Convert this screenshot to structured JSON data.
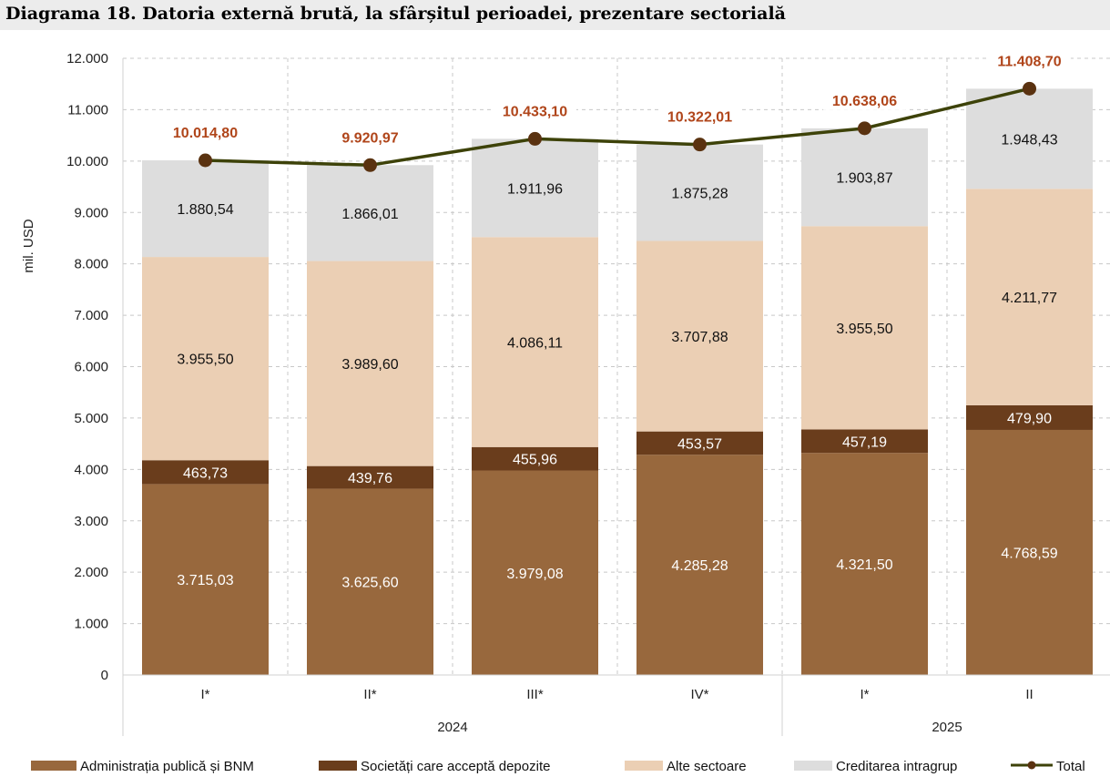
{
  "title": "Diagrama 18. Datoria externă brută, la sfârșitul perioadei, prezentare sectorială",
  "chart_data": {
    "type": "bar",
    "stacked": true,
    "ylabel": "mil. USD",
    "ylim": [
      0,
      12000
    ],
    "ytick_step": 1000,
    "yticks": [
      "0",
      "1.000",
      "2.000",
      "3.000",
      "4.000",
      "5.000",
      "6.000",
      "7.000",
      "8.000",
      "9.000",
      "10.000",
      "11.000",
      "12.000"
    ],
    "grid": true,
    "legend_position": "bottom",
    "categories": [
      "I*",
      "II*",
      "III*",
      "IV*",
      "I*",
      "II"
    ],
    "year_groups": [
      {
        "label": "2024",
        "start": 0,
        "end": 3
      },
      {
        "label": "2025",
        "start": 4,
        "end": 5
      }
    ],
    "series": [
      {
        "name": "Administrația publică și BNM",
        "color": "#98683d",
        "label_color": "#ffffff",
        "values": [
          3715.03,
          3625.6,
          3979.08,
          4285.28,
          4321.5,
          4768.59
        ],
        "labels": [
          "3.715,03",
          "3.625,60",
          "3.979,08",
          "4.285,28",
          "4.321,50",
          "4.768,59"
        ]
      },
      {
        "name": "Societăți care acceptă depozite",
        "color": "#6a3d1c",
        "label_color": "#ffffff",
        "values": [
          463.73,
          439.76,
          455.96,
          453.57,
          457.19,
          479.9
        ],
        "labels": [
          "463,73",
          "439,76",
          "455,96",
          "453,57",
          "457,19",
          "479,90"
        ]
      },
      {
        "name": "Alte sectoare",
        "color": "#ebcfb4",
        "label_color": "#111111",
        "values": [
          3955.5,
          3989.6,
          4086.11,
          3707.88,
          3955.5,
          4211.77
        ],
        "labels": [
          "3.955,50",
          "3.989,60",
          "4.086,11",
          "3.707,88",
          "3.955,50",
          "4.211,77"
        ]
      },
      {
        "name": "Creditarea intragrup",
        "color": "#dddddd",
        "label_color": "#111111",
        "values": [
          1880.54,
          1866.01,
          1911.96,
          1875.28,
          1903.87,
          1948.43
        ],
        "labels": [
          "1.880,54",
          "1.866,01",
          "1.911,96",
          "1.875,28",
          "1.903,87",
          "1.948,43"
        ]
      }
    ],
    "total": {
      "name": "Total",
      "type": "line",
      "color": "#3d4209",
      "label_color": "#b0451a",
      "marker_color": "#5a3210",
      "values": [
        10014.8,
        9920.97,
        10433.1,
        10322.01,
        10638.06,
        11408.7
      ],
      "labels": [
        "10.014,80",
        "9.920,97",
        "10.433,10",
        "10.322,01",
        "10.638,06",
        "11.408,70"
      ]
    }
  }
}
